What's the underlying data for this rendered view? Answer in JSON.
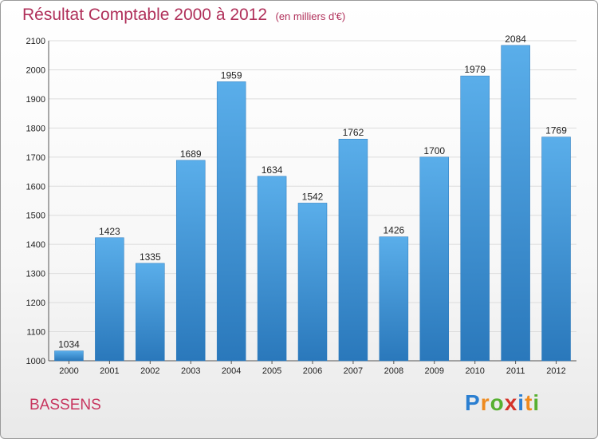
{
  "header": {
    "title": "Résultat Comptable 2000 à 2012",
    "subtitle": "(en milliers d'€)"
  },
  "footer": {
    "city": "BASSENS",
    "logo_letters": [
      "P",
      "r",
      "o",
      "x",
      "i",
      "t",
      "i"
    ],
    "logo_colors": [
      "#2b7fd1",
      "#ee8a1e",
      "#57b031",
      "#d4332a",
      "#2b7fd1",
      "#ee8a1e",
      "#57b031"
    ]
  },
  "chart_data": {
    "type": "bar",
    "title": "Résultat Comptable 2000 à 2012",
    "subtitle": "(en milliers d'€)",
    "xlabel": "",
    "ylabel": "",
    "categories": [
      "2000",
      "2001",
      "2002",
      "2003",
      "2004",
      "2005",
      "2006",
      "2007",
      "2008",
      "2009",
      "2010",
      "2011",
      "2012"
    ],
    "values": [
      1034,
      1423,
      1335,
      1689,
      1959,
      1634,
      1542,
      1762,
      1426,
      1700,
      1979,
      2084,
      1769
    ],
    "ylim": [
      1000,
      2100
    ],
    "yticks": [
      1000,
      1100,
      1200,
      1300,
      1400,
      1500,
      1600,
      1700,
      1800,
      1900,
      2000,
      2100
    ],
    "grid": true,
    "bar_color_top": "#5aaeea",
    "bar_color_bottom": "#2a78bb"
  }
}
